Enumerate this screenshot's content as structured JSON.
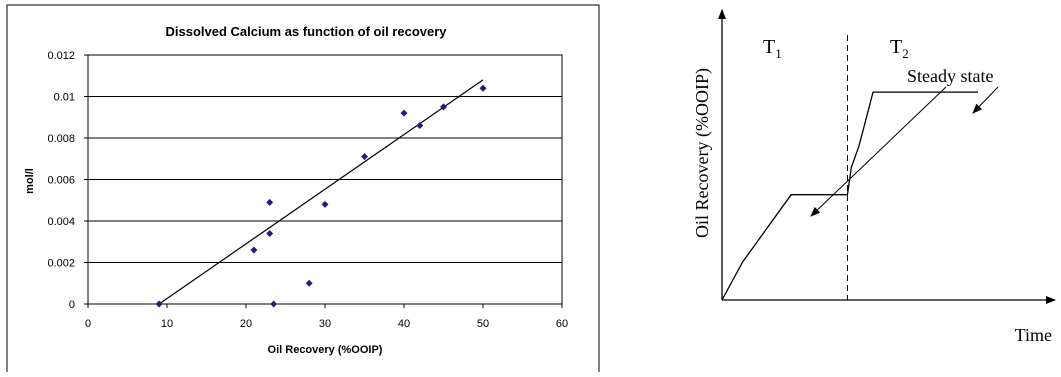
{
  "chart_data": [
    {
      "type": "scatter",
      "title": "Dissolved Calcium as function of oil recovery",
      "xlabel": "Oil Recovery (%OOIP)",
      "ylabel": "mol/l",
      "xlim": [
        0,
        60
      ],
      "ylim": [
        0,
        0.012
      ],
      "x_ticks": [
        "0",
        "10",
        "20",
        "30",
        "40",
        "50",
        "60"
      ],
      "y_ticks": [
        "0",
        "0.002",
        "0.004",
        "0.006",
        "0.008",
        "0.01",
        "0.012"
      ],
      "grid": "horizontal",
      "legend": "none",
      "marker_color": "#1F1F7A",
      "points": [
        {
          "x": 9,
          "y": 0.0
        },
        {
          "x": 21,
          "y": 0.0026
        },
        {
          "x": 23,
          "y": 0.0034
        },
        {
          "x": 23,
          "y": 0.0049
        },
        {
          "x": 23.5,
          "y": 0.0
        },
        {
          "x": 28,
          "y": 0.001
        },
        {
          "x": 30,
          "y": 0.0048
        },
        {
          "x": 35,
          "y": 0.0071
        },
        {
          "x": 40,
          "y": 0.0092
        },
        {
          "x": 42,
          "y": 0.0086
        },
        {
          "x": 45,
          "y": 0.0095
        },
        {
          "x": 50,
          "y": 0.0104
        }
      ],
      "trendline": {
        "x": [
          9,
          50
        ],
        "y": [
          0.0,
          0.0108
        ]
      }
    },
    {
      "type": "line",
      "xlabel": "Time",
      "ylabel": "Oil Recovery (%OOIP)",
      "phase_labels": [
        {
          "main": "T",
          "sub": "1"
        },
        {
          "main": "T",
          "sub": "2"
        }
      ],
      "annotation": "Steady state",
      "xlim": [
        0,
        100
      ],
      "ylim": [
        0,
        100
      ],
      "series": [
        {
          "x": [
            0,
            8,
            27,
            49,
            50.5,
            53.5,
            59,
            100
          ],
          "y": [
            0,
            14,
            39,
            39,
            49,
            57,
            77,
            77
          ]
        }
      ],
      "divider_x": 49
    }
  ]
}
